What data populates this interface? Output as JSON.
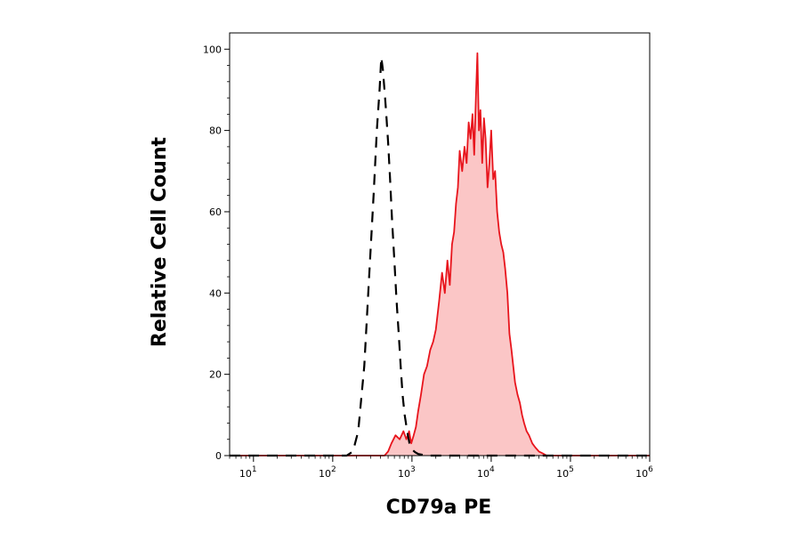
{
  "chart_data": {
    "type": "area",
    "title": "",
    "xlabel": "CD79a PE",
    "ylabel": "Relative Cell Count",
    "x_scale": "log",
    "xlim": [
      5,
      1000000
    ],
    "ylim": [
      0,
      104
    ],
    "grid": false,
    "legend": "none",
    "y_ticks": [
      {
        "value": 0,
        "label": "0"
      },
      {
        "value": 20,
        "label": "20"
      },
      {
        "value": 40,
        "label": "40"
      },
      {
        "value": 60,
        "label": "60"
      },
      {
        "value": 80,
        "label": "80"
      },
      {
        "value": 100,
        "label": "100"
      }
    ],
    "x_ticks": [
      {
        "value": 10,
        "base": "10",
        "exp": "1"
      },
      {
        "value": 100,
        "base": "10",
        "exp": "2"
      },
      {
        "value": 1000,
        "base": "10",
        "exp": "3"
      },
      {
        "value": 10000,
        "base": "10",
        "exp": "4"
      },
      {
        "value": 100000,
        "base": "10",
        "exp": "5"
      },
      {
        "value": 1000000,
        "base": "10",
        "exp": "6"
      }
    ],
    "series": [
      {
        "style": "dashed",
        "color": "#000000",
        "fill": false,
        "x": [
          5,
          100,
          150,
          180,
          210,
          250,
          290,
          330,
          360,
          390,
          410,
          430,
          450,
          470,
          500,
          530,
          560,
          600,
          640,
          680,
          720,
          760,
          810,
          870,
          930,
          1000,
          1100,
          1200,
          1350,
          1500,
          2000,
          5000,
          20000,
          1000000
        ],
        "y": [
          0,
          0,
          0,
          1,
          6,
          22,
          45,
          65,
          80,
          90,
          98,
          95,
          90,
          85,
          77,
          68,
          58,
          48,
          38,
          30,
          22,
          15,
          10,
          6,
          3,
          1.5,
          0.8,
          0.4,
          0.2,
          0,
          0,
          0,
          0,
          0
        ]
      },
      {
        "style": "solid",
        "color": "#e8141c",
        "fill": true,
        "fill_color": "#fbc6c6",
        "x": [
          5,
          300,
          450,
          500,
          550,
          620,
          700,
          780,
          850,
          920,
          980,
          1050,
          1120,
          1200,
          1300,
          1420,
          1550,
          1700,
          1850,
          2000,
          2200,
          2400,
          2600,
          2800,
          3000,
          3200,
          3400,
          3600,
          3800,
          4000,
          4300,
          4600,
          4900,
          5200,
          5500,
          5800,
          6100,
          6400,
          6700,
          7000,
          7300,
          7700,
          8100,
          8500,
          9000,
          9500,
          10000,
          10600,
          11200,
          11900,
          12600,
          13400,
          14200,
          15000,
          16000,
          17000,
          18000,
          19000,
          20000,
          21500,
          23000,
          24500,
          26000,
          28000,
          30000,
          33000,
          36000,
          40000,
          45000,
          50000,
          55000,
          60000,
          70000,
          1000000
        ],
        "y": [
          0,
          0,
          0,
          1,
          3,
          5,
          4,
          6,
          4,
          6,
          3,
          5,
          7,
          11,
          15,
          20,
          22,
          26,
          28,
          31,
          38,
          45,
          40,
          48,
          42,
          52,
          55,
          62,
          66,
          75,
          70,
          76,
          72,
          82,
          78,
          84,
          74,
          88,
          99,
          80,
          85,
          72,
          83,
          78,
          66,
          72,
          80,
          68,
          70,
          60,
          55,
          52,
          50,
          46,
          40,
          30,
          26,
          22,
          18,
          15,
          13,
          10,
          8,
          6,
          5,
          3,
          2,
          1,
          0.5,
          0,
          0,
          0,
          0,
          0
        ]
      }
    ]
  }
}
